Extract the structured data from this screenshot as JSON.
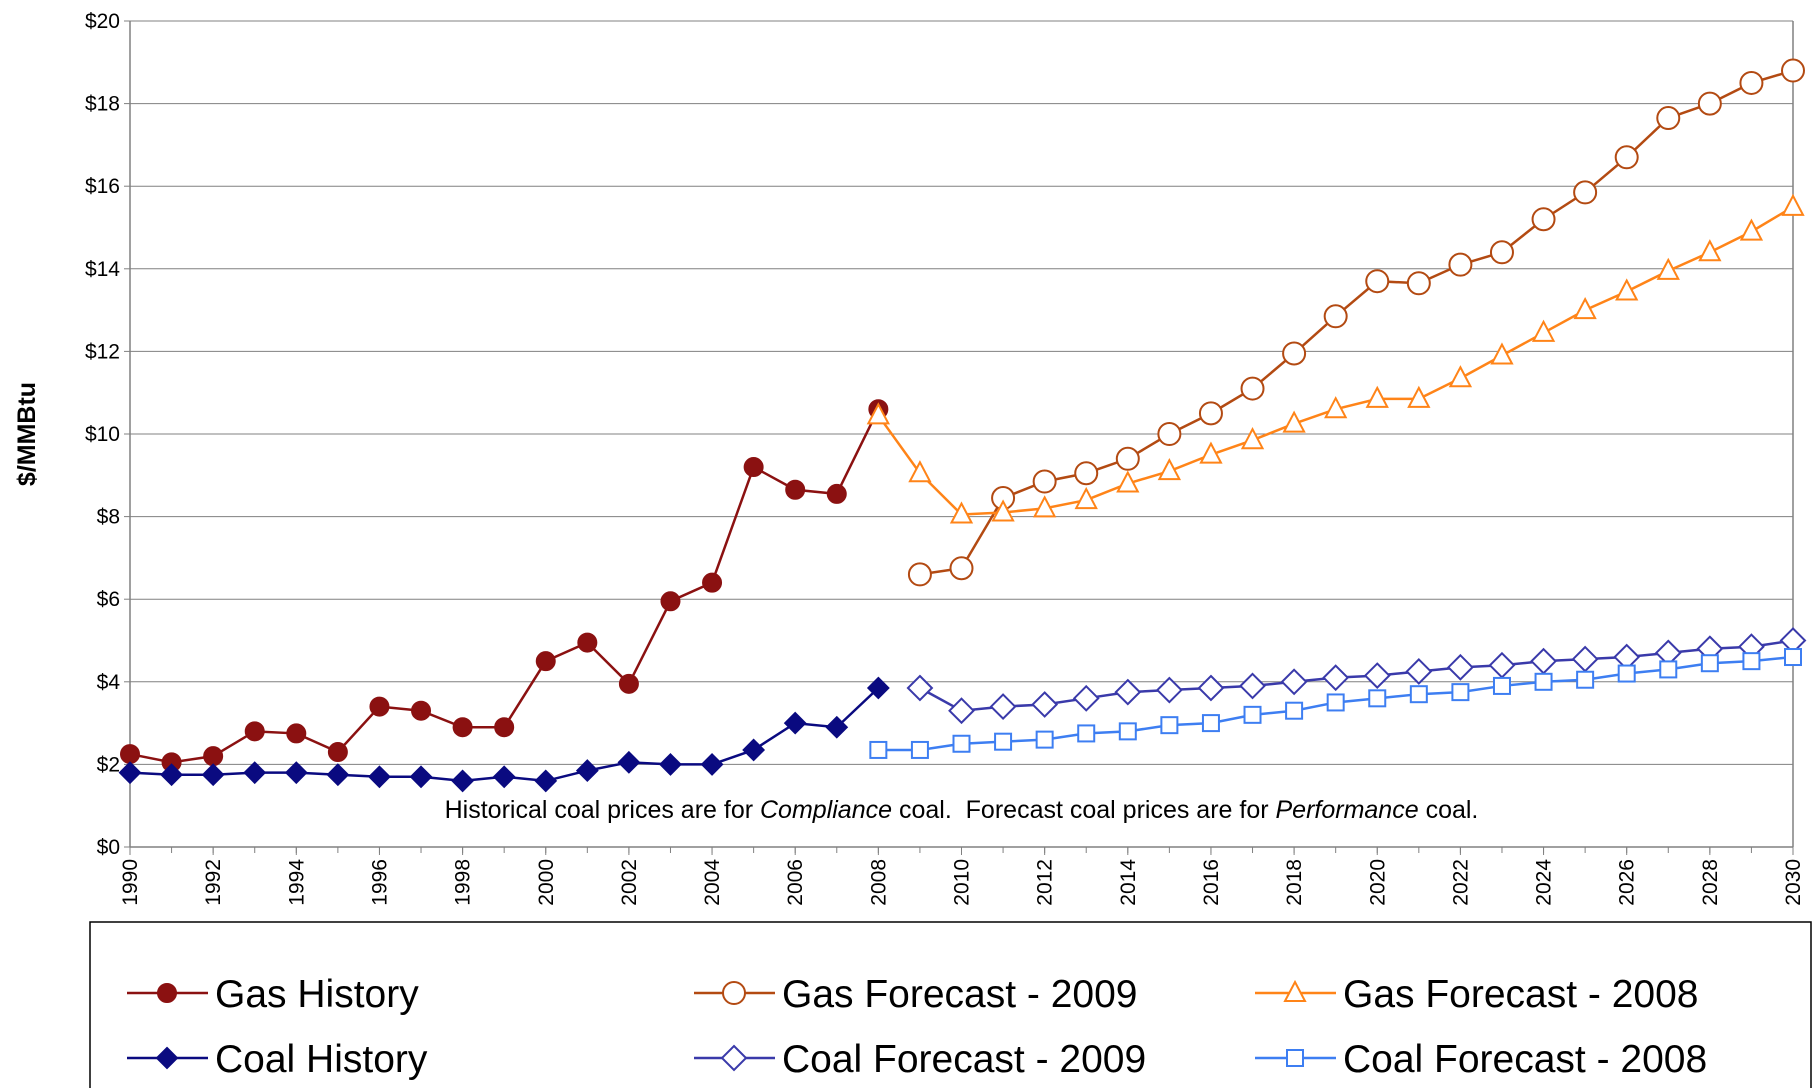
{
  "chart_data": {
    "type": "line",
    "ylabel": "$/MMBtu",
    "annotation": [
      "Historical coal prices are for ",
      "Compliance",
      " coal.  Forecast coal prices are for ",
      "Performance",
      " coal."
    ],
    "x": [
      1990,
      1991,
      1992,
      1993,
      1994,
      1995,
      1996,
      1997,
      1998,
      1999,
      2000,
      2001,
      2002,
      2003,
      2004,
      2005,
      2006,
      2007,
      2008,
      2009,
      2010,
      2011,
      2012,
      2013,
      2014,
      2015,
      2016,
      2017,
      2018,
      2019,
      2020,
      2021,
      2022,
      2023,
      2024,
      2025,
      2026,
      2027,
      2028,
      2029,
      2030
    ],
    "xlim": [
      1990,
      2030
    ],
    "xticks": [
      1990,
      1992,
      1994,
      1996,
      1998,
      2000,
      2002,
      2004,
      2006,
      2008,
      2010,
      2012,
      2014,
      2016,
      2018,
      2020,
      2022,
      2024,
      2026,
      2028,
      2030
    ],
    "ylim": [
      0,
      20
    ],
    "yticks": [
      {
        "value": 0,
        "label": "$0"
      },
      {
        "value": 2,
        "label": "$2"
      },
      {
        "value": 4,
        "label": "$4"
      },
      {
        "value": 6,
        "label": "$6"
      },
      {
        "value": 8,
        "label": "$8"
      },
      {
        "value": 10,
        "label": "$10"
      },
      {
        "value": 12,
        "label": "$12"
      },
      {
        "value": 14,
        "label": "$14"
      },
      {
        "value": 16,
        "label": "$16"
      },
      {
        "value": 18,
        "label": "$18"
      },
      {
        "value": 20,
        "label": "$20"
      }
    ],
    "grid": true,
    "legend": "bottom",
    "series": [
      {
        "name": "Gas History",
        "color": "#8b1111",
        "marker": "circle",
        "filled": true,
        "values": [
          2.25,
          2.05,
          2.2,
          2.8,
          2.75,
          2.3,
          3.4,
          3.3,
          2.9,
          2.9,
          4.5,
          4.95,
          3.95,
          5.95,
          6.4,
          9.2,
          8.65,
          8.55,
          10.6,
          null,
          null,
          null,
          null,
          null,
          null,
          null,
          null,
          null,
          null,
          null,
          null,
          null,
          null,
          null,
          null,
          null,
          null,
          null,
          null,
          null,
          null
        ]
      },
      {
        "name": "Gas Forecast - 2009",
        "color": "#b34a12",
        "marker": "circle",
        "filled": false,
        "values": [
          null,
          null,
          null,
          null,
          null,
          null,
          null,
          null,
          null,
          null,
          null,
          null,
          null,
          null,
          null,
          null,
          null,
          null,
          null,
          6.6,
          6.75,
          8.45,
          8.85,
          9.05,
          9.4,
          10.0,
          10.5,
          11.1,
          11.95,
          12.85,
          13.7,
          13.65,
          14.1,
          14.4,
          15.2,
          15.85,
          16.7,
          17.65,
          18.0,
          18.5,
          18.8
        ]
      },
      {
        "name": "Gas Forecast - 2008",
        "color": "#ff8418",
        "marker": "triangle",
        "filled": false,
        "values": [
          null,
          null,
          null,
          null,
          null,
          null,
          null,
          null,
          null,
          null,
          null,
          null,
          null,
          null,
          null,
          null,
          null,
          null,
          10.45,
          9.05,
          8.05,
          8.1,
          8.2,
          8.4,
          8.8,
          9.1,
          9.5,
          9.85,
          10.25,
          10.6,
          10.85,
          10.85,
          11.35,
          11.9,
          12.45,
          13.0,
          13.45,
          13.95,
          14.4,
          14.9,
          15.5
        ]
      },
      {
        "name": "Coal History",
        "color": "#0a0a80",
        "marker": "diamond",
        "filled": true,
        "values": [
          1.8,
          1.75,
          1.75,
          1.8,
          1.8,
          1.75,
          1.7,
          1.7,
          1.6,
          1.7,
          1.6,
          1.85,
          2.05,
          2.0,
          2.0,
          2.35,
          3.0,
          2.9,
          3.85,
          null,
          null,
          null,
          null,
          null,
          null,
          null,
          null,
          null,
          null,
          null,
          null,
          null,
          null,
          null,
          null,
          null,
          null,
          null,
          null,
          null,
          null
        ]
      },
      {
        "name": "Coal Forecast - 2009",
        "color": "#3a3aaa",
        "marker": "diamond",
        "filled": false,
        "values": [
          null,
          null,
          null,
          null,
          null,
          null,
          null,
          null,
          null,
          null,
          null,
          null,
          null,
          null,
          null,
          null,
          null,
          null,
          null,
          3.85,
          3.3,
          3.4,
          3.45,
          3.6,
          3.75,
          3.8,
          3.85,
          3.9,
          4.0,
          4.1,
          4.15,
          4.25,
          4.35,
          4.4,
          4.5,
          4.55,
          4.6,
          4.7,
          4.8,
          4.85,
          5.0
        ]
      },
      {
        "name": "Coal Forecast - 2008",
        "color": "#3d7ef2",
        "marker": "square",
        "filled": false,
        "values": [
          null,
          null,
          null,
          null,
          null,
          null,
          null,
          null,
          null,
          null,
          null,
          null,
          null,
          null,
          null,
          null,
          null,
          null,
          2.35,
          2.35,
          2.5,
          2.55,
          2.6,
          2.75,
          2.8,
          2.95,
          3.0,
          3.2,
          3.3,
          3.5,
          3.6,
          3.7,
          3.75,
          3.9,
          4.0,
          4.05,
          4.2,
          4.3,
          4.45,
          4.5,
          4.6
        ]
      }
    ]
  }
}
